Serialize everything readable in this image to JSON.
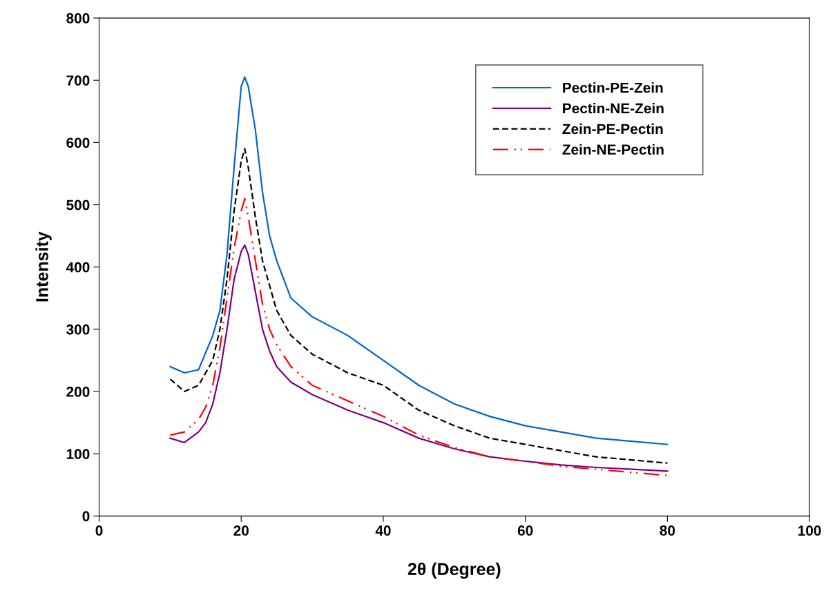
{
  "chart_data": {
    "type": "line",
    "xlabel": "2θ (Degree)",
    "ylabel": "Intensity",
    "xlim": [
      0,
      100
    ],
    "xticks": [
      0,
      20,
      40,
      60,
      80,
      100
    ],
    "ylim": [
      0,
      800
    ],
    "yticks": [
      0,
      100,
      200,
      300,
      400,
      500,
      600,
      700,
      800
    ],
    "grid": false,
    "legend": "top right",
    "marker": "none",
    "series": [
      {
        "name": "Pectin-PE-Zein",
        "color": "#0066cc",
        "line_style": "solid",
        "x": [
          10,
          12,
          14,
          16,
          17,
          18,
          19,
          20,
          20.5,
          21,
          22,
          23,
          24,
          25,
          27,
          30,
          35,
          40,
          45,
          50,
          55,
          60,
          65,
          70,
          75,
          80
        ],
        "values": [
          240,
          230,
          235,
          290,
          330,
          420,
          560,
          690,
          705,
          690,
          620,
          520,
          450,
          410,
          350,
          320,
          290,
          250,
          210,
          180,
          160,
          145,
          135,
          125,
          120,
          115
        ]
      },
      {
        "name": "Pectin-NE-Zein",
        "color": "#800080",
        "line_style": "solid",
        "x": [
          10,
          12,
          14,
          15,
          16,
          17,
          18,
          19,
          20,
          20.5,
          21,
          22,
          23,
          24,
          25,
          27,
          30,
          35,
          40,
          45,
          50,
          55,
          60,
          65,
          70,
          75,
          80
        ],
        "values": [
          125,
          118,
          135,
          150,
          180,
          230,
          300,
          380,
          425,
          435,
          420,
          360,
          300,
          265,
          240,
          215,
          195,
          170,
          150,
          125,
          108,
          95,
          88,
          82,
          78,
          75,
          72
        ]
      },
      {
        "name": "Zein-PE-Pectin",
        "color": "#000000",
        "line_style": "dashed",
        "x": [
          10,
          12,
          14,
          16,
          17,
          18,
          19,
          20,
          20.5,
          21,
          22,
          23,
          24,
          25,
          27,
          30,
          35,
          40,
          45,
          50,
          55,
          60,
          65,
          70,
          75,
          80
        ],
        "values": [
          220,
          200,
          210,
          250,
          300,
          380,
          490,
          570,
          590,
          560,
          480,
          410,
          370,
          330,
          290,
          260,
          230,
          210,
          170,
          145,
          125,
          115,
          105,
          95,
          90,
          85
        ]
      },
      {
        "name": "Zein-NE-Pectin",
        "color": "#ff0000",
        "line_style": "dashdot",
        "x": [
          10,
          12,
          14,
          15,
          16,
          17,
          18,
          19,
          20,
          20.5,
          21,
          22,
          23,
          24,
          25,
          27,
          30,
          35,
          40,
          45,
          50,
          55,
          60,
          65,
          70,
          75,
          80
        ],
        "values": [
          130,
          135,
          155,
          175,
          210,
          270,
          350,
          430,
          490,
          510,
          480,
          410,
          340,
          300,
          275,
          240,
          210,
          185,
          160,
          130,
          110,
          95,
          88,
          80,
          75,
          70,
          65
        ]
      }
    ]
  }
}
